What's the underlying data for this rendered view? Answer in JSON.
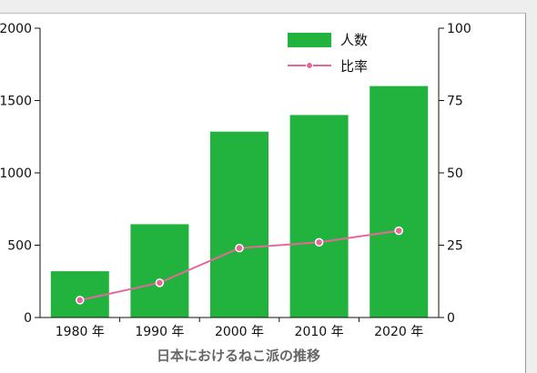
{
  "chart_data": {
    "type": "bar",
    "title": "日本におけるねこ派の推移",
    "categories": [
      "1980 年",
      "1990 年",
      "2000 年",
      "2010 年",
      "2020 年"
    ],
    "series": [
      {
        "name": "人数",
        "type": "bar",
        "axis": "left",
        "color": "#22b33f",
        "values": [
          320,
          645,
          1285,
          1400,
          1600
        ]
      },
      {
        "name": "比率",
        "type": "line",
        "axis": "right",
        "color": "#e8679b",
        "values": [
          6,
          12,
          24,
          26,
          30
        ]
      }
    ],
    "y_left": {
      "range": [
        0,
        2000
      ],
      "ticks": [
        "0",
        "500",
        "1000",
        "1500",
        "2000"
      ]
    },
    "y_right": {
      "range": [
        0,
        100
      ],
      "ticks": [
        "0",
        "25",
        "50",
        "75",
        "100"
      ]
    },
    "legend_position": "top-right",
    "grid": false
  }
}
